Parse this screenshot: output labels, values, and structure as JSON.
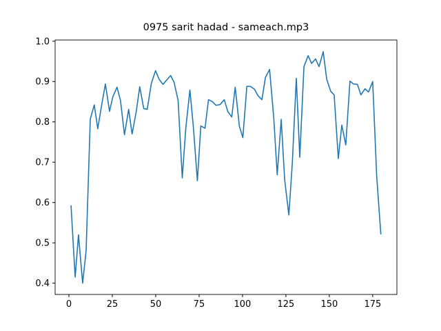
{
  "chart_data": {
    "type": "line",
    "title": "0975 sarit hadad - sameach.mp3",
    "x": [
      1.2,
      3.6,
      5.5,
      7.9,
      9.9,
      12.3,
      14.6,
      16.6,
      19,
      21,
      23.4,
      25.3,
      27.7,
      29.7,
      32,
      34.4,
      36.4,
      38.8,
      40.8,
      43.1,
      45.1,
      47.5,
      49.9,
      51.9,
      54.2,
      56.2,
      58.6,
      60.6,
      62.9,
      65.3,
      67.3,
      69.7,
      71.7,
      74,
      76,
      78.4,
      80.4,
      82.7,
      84.7,
      87.1,
      89.5,
      91.5,
      93.8,
      95.8,
      98.2,
      100.2,
      102.5,
      104.5,
      106.9,
      108.9,
      111.2,
      113.2,
      115.6,
      118,
      120,
      122.3,
      124.3,
      126.7,
      128.7,
      131,
      133,
      135.4,
      137.8,
      139.8,
      142.1,
      144.1,
      146.5,
      148.5,
      150.8,
      152.8,
      155.2,
      157.2,
      159.5,
      161.9,
      163.9,
      166.2,
      168.2,
      170.6,
      172.6,
      175,
      177.3,
      179.7
    ],
    "series": [
      {
        "color": "#1f77b4",
        "values": [
          0.593,
          0.415,
          0.52,
          0.4,
          0.48,
          0.807,
          0.842,
          0.783,
          0.845,
          0.894,
          0.826,
          0.862,
          0.886,
          0.853,
          0.768,
          0.831,
          0.77,
          0.826,
          0.887,
          0.833,
          0.831,
          0.896,
          0.927,
          0.906,
          0.893,
          0.903,
          0.915,
          0.898,
          0.853,
          0.661,
          0.783,
          0.879,
          0.787,
          0.654,
          0.79,
          0.784,
          0.855,
          0.85,
          0.841,
          0.843,
          0.855,
          0.826,
          0.812,
          0.886,
          0.789,
          0.761,
          0.888,
          0.888,
          0.881,
          0.865,
          0.855,
          0.91,
          0.93,
          0.81,
          0.669,
          0.806,
          0.656,
          0.569,
          0.698,
          0.908,
          0.712,
          0.937,
          0.964,
          0.945,
          0.956,
          0.937,
          0.974,
          0.906,
          0.876,
          0.867,
          0.709,
          0.792,
          0.743,
          0.901,
          0.894,
          0.893,
          0.867,
          0.882,
          0.874,
          0.9,
          0.666,
          0.521
        ]
      }
    ],
    "xlim": [
      -7.95,
      188.95
    ],
    "xticks": [
      0,
      25,
      50,
      75,
      100,
      125,
      150,
      175
    ],
    "ylim": [
      0.372,
      1.003
    ],
    "yticks": [
      {
        "value": 0.4,
        "label": "0.4"
      },
      {
        "value": 0.5,
        "label": "0.5"
      },
      {
        "value": 0.6,
        "label": "0.6"
      },
      {
        "value": 0.7,
        "label": "0.7"
      },
      {
        "value": 0.8,
        "label": "0.8"
      },
      {
        "value": 0.9,
        "label": "0.9"
      },
      {
        "value": 1.0,
        "label": "1.0"
      }
    ]
  }
}
